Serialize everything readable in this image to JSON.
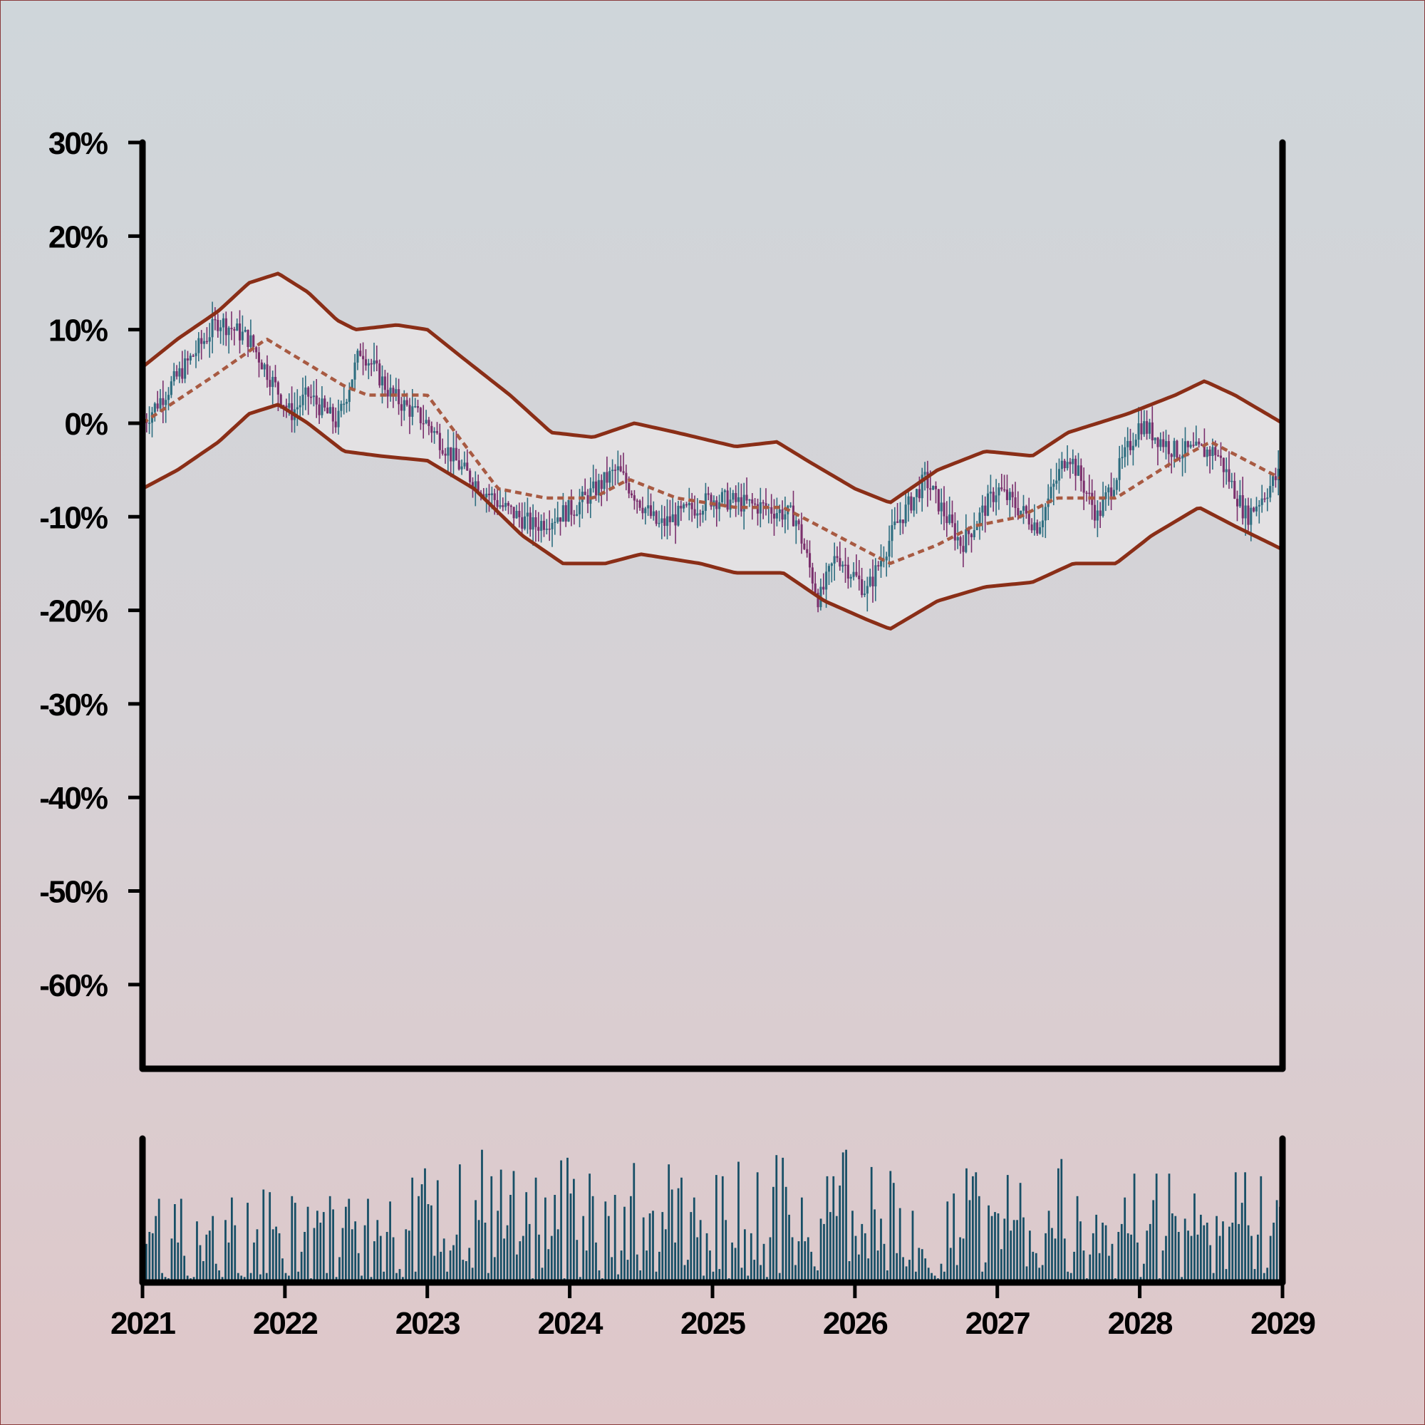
{
  "chart_data": [
    {
      "type": "candlestick",
      "title": "",
      "xlabel": "",
      "ylabel": "",
      "x_ticks": [
        "2021",
        "2022",
        "2023",
        "2024",
        "2025",
        "2026",
        "2027",
        "2028",
        "2029"
      ],
      "y_ticks": [
        "30%",
        "20%",
        "10%",
        "0%",
        "-10%",
        "-20%",
        "-30%",
        "-40%",
        "-50%",
        "-60%"
      ],
      "y_tick_values": [
        30,
        20,
        10,
        0,
        -10,
        -20,
        -30,
        -40,
        -50,
        -60
      ],
      "xlim": [
        "2021-01-01",
        "2029-01-01"
      ],
      "ylim": [
        -69,
        30
      ],
      "grid": false,
      "y_unit": "%",
      "series": [
        {
          "kind": "price-path",
          "note_points": [
            {
              "x": "2021-01-01",
              "y": 0
            },
            {
              "x": "2021-04-01",
              "y": 5
            },
            {
              "x": "2021-07-15",
              "y": 11
            },
            {
              "x": "2021-10-01",
              "y": 9
            },
            {
              "x": "2022-01-15",
              "y": 1
            },
            {
              "x": "2022-03-01",
              "y": 3
            },
            {
              "x": "2022-05-15",
              "y": 0
            },
            {
              "x": "2022-07-15",
              "y": 8
            },
            {
              "x": "2022-10-01",
              "y": 3
            },
            {
              "x": "2023-01-01",
              "y": 0
            },
            {
              "x": "2023-04-01",
              "y": -5
            },
            {
              "x": "2023-07-15",
              "y": -9
            },
            {
              "x": "2023-10-01",
              "y": -11
            },
            {
              "x": "2024-01-15",
              "y": -9
            },
            {
              "x": "2024-05-01",
              "y": -5
            },
            {
              "x": "2024-08-15",
              "y": -11
            },
            {
              "x": "2025-01-01",
              "y": -8
            },
            {
              "x": "2025-05-15",
              "y": -9
            },
            {
              "x": "2025-08-01",
              "y": -10
            },
            {
              "x": "2025-10-01",
              "y": -19
            },
            {
              "x": "2025-11-15",
              "y": -14
            },
            {
              "x": "2026-02-01",
              "y": -18
            },
            {
              "x": "2026-04-15",
              "y": -11
            },
            {
              "x": "2026-07-01",
              "y": -6
            },
            {
              "x": "2026-10-01",
              "y": -13
            },
            {
              "x": "2027-01-01",
              "y": -7
            },
            {
              "x": "2027-04-15",
              "y": -11
            },
            {
              "x": "2027-07-01",
              "y": -3
            },
            {
              "x": "2027-09-15",
              "y": -10
            },
            {
              "x": "2028-01-01",
              "y": 0
            },
            {
              "x": "2028-04-01",
              "y": -3
            },
            {
              "x": "2028-07-15",
              "y": -3
            },
            {
              "x": "2028-10-01",
              "y": -10
            },
            {
              "x": "2029-01-01",
              "y": -5
            }
          ]
        },
        {
          "kind": "moving-average",
          "style": "dashed",
          "points": [
            {
              "x": "2021-01-01",
              "y": 0
            },
            {
              "x": "2021-07-01",
              "y": 5
            },
            {
              "x": "2021-11-15",
              "y": 9
            },
            {
              "x": "2022-06-01",
              "y": 4
            },
            {
              "x": "2022-08-01",
              "y": 3
            },
            {
              "x": "2023-01-01",
              "y": 3
            },
            {
              "x": "2023-04-01",
              "y": -2
            },
            {
              "x": "2023-07-01",
              "y": -7
            },
            {
              "x": "2023-11-01",
              "y": -8
            },
            {
              "x": "2024-03-01",
              "y": -8
            },
            {
              "x": "2024-06-01",
              "y": -6
            },
            {
              "x": "2024-10-01",
              "y": -8
            },
            {
              "x": "2025-03-01",
              "y": -9
            },
            {
              "x": "2025-07-01",
              "y": -9
            },
            {
              "x": "2025-10-01",
              "y": -11
            },
            {
              "x": "2026-04-01",
              "y": -15
            },
            {
              "x": "2026-08-01",
              "y": -13
            },
            {
              "x": "2026-11-01",
              "y": -11
            },
            {
              "x": "2027-03-01",
              "y": -10
            },
            {
              "x": "2027-06-01",
              "y": -8
            },
            {
              "x": "2027-11-01",
              "y": -8
            },
            {
              "x": "2028-04-01",
              "y": -4
            },
            {
              "x": "2028-07-01",
              "y": -2
            },
            {
              "x": "2029-01-01",
              "y": -6
            }
          ]
        },
        {
          "kind": "upper-band",
          "points": [
            {
              "x": "2021-01-01",
              "y": 6
            },
            {
              "x": "2021-04-01",
              "y": 9
            },
            {
              "x": "2021-07-15",
              "y": 12
            },
            {
              "x": "2021-10-01",
              "y": 15
            },
            {
              "x": "2021-12-15",
              "y": 16
            },
            {
              "x": "2022-03-01",
              "y": 14
            },
            {
              "x": "2022-05-15",
              "y": 11
            },
            {
              "x": "2022-07-01",
              "y": 10
            },
            {
              "x": "2022-10-15",
              "y": 10.5
            },
            {
              "x": "2023-01-01",
              "y": 10
            },
            {
              "x": "2023-04-01",
              "y": 7
            },
            {
              "x": "2023-08-01",
              "y": 3
            },
            {
              "x": "2023-11-15",
              "y": -1
            },
            {
              "x": "2024-03-01",
              "y": -1.5
            },
            {
              "x": "2024-06-15",
              "y": 0
            },
            {
              "x": "2024-10-01",
              "y": -1
            },
            {
              "x": "2025-03-01",
              "y": -2.5
            },
            {
              "x": "2025-06-15",
              "y": -2
            },
            {
              "x": "2025-09-01",
              "y": -4
            },
            {
              "x": "2026-01-01",
              "y": -7
            },
            {
              "x": "2026-04-01",
              "y": -8.5
            },
            {
              "x": "2026-08-01",
              "y": -5
            },
            {
              "x": "2026-12-01",
              "y": -3
            },
            {
              "x": "2027-04-01",
              "y": -3.5
            },
            {
              "x": "2027-07-01",
              "y": -1
            },
            {
              "x": "2027-12-01",
              "y": 1
            },
            {
              "x": "2028-04-01",
              "y": 3
            },
            {
              "x": "2028-06-15",
              "y": 4.5
            },
            {
              "x": "2028-09-01",
              "y": 3
            },
            {
              "x": "2029-01-01",
              "y": 0
            }
          ]
        },
        {
          "kind": "lower-band",
          "points": [
            {
              "x": "2021-01-01",
              "y": -7
            },
            {
              "x": "2021-04-01",
              "y": -5
            },
            {
              "x": "2021-07-15",
              "y": -2
            },
            {
              "x": "2021-10-01",
              "y": 1
            },
            {
              "x": "2021-12-15",
              "y": 2
            },
            {
              "x": "2022-03-01",
              "y": 0
            },
            {
              "x": "2022-06-01",
              "y": -3
            },
            {
              "x": "2022-09-01",
              "y": -3.5
            },
            {
              "x": "2023-01-01",
              "y": -4
            },
            {
              "x": "2023-05-01",
              "y": -7
            },
            {
              "x": "2023-09-01",
              "y": -12
            },
            {
              "x": "2023-12-15",
              "y": -15
            },
            {
              "x": "2024-04-01",
              "y": -15
            },
            {
              "x": "2024-07-01",
              "y": -14
            },
            {
              "x": "2024-12-01",
              "y": -15
            },
            {
              "x": "2025-03-01",
              "y": -16
            },
            {
              "x": "2025-07-01",
              "y": -16
            },
            {
              "x": "2025-10-15",
              "y": -19
            },
            {
              "x": "2026-02-01",
              "y": -21
            },
            {
              "x": "2026-04-01",
              "y": -22
            },
            {
              "x": "2026-08-01",
              "y": -19
            },
            {
              "x": "2026-12-01",
              "y": -17.5
            },
            {
              "x": "2027-04-01",
              "y": -17
            },
            {
              "x": "2027-07-15",
              "y": -15
            },
            {
              "x": "2027-11-01",
              "y": -15
            },
            {
              "x": "2028-02-01",
              "y": -12
            },
            {
              "x": "2028-06-01",
              "y": -9
            },
            {
              "x": "2028-09-01",
              "y": -11
            },
            {
              "x": "2029-01-01",
              "y": -13.5
            }
          ]
        }
      ]
    },
    {
      "type": "bar",
      "title": "",
      "xlabel": "",
      "ylabel": "",
      "note": "volume subplot",
      "x_ticks": [
        "2021",
        "2022",
        "2023",
        "2024",
        "2025",
        "2026",
        "2027",
        "2028",
        "2029"
      ],
      "values_source": "weekly bars, heights relative 0-1",
      "values": [
        0.27,
        0.36,
        0.35,
        0.48,
        0.61,
        0.05,
        0.02,
        0.01,
        0.31,
        0.57,
        0.28,
        0.61,
        0.18,
        0.03,
        0.01,
        0.02,
        0.44,
        0.26,
        0.14,
        0.34,
        0.37,
        0.48,
        0.12,
        0.07,
        0.02,
        0.45,
        0.28,
        0.62,
        0.41,
        0.05,
        0.03,
        0.02,
        0.58,
        0.05,
        0.28,
        0.38,
        0.04,
        0.68,
        0.05,
        0.66,
        0.38,
        0.4,
        0.35,
        0.16,
        0.05,
        0.03,
        0.63,
        0.58,
        0.06,
        0.21,
        0.36,
        0.55,
        0.01,
        0.39,
        0.52,
        0.43,
        0.51,
        0.05,
        0.63,
        0.53,
        0.02,
        0.17,
        0.39,
        0.55,
        0.61,
        0.38,
        0.44,
        0.2,
        0.03,
        0.41,
        0.61,
        0.02,
        0.29,
        0.45,
        0.33,
        0.06,
        0.36,
        0.59,
        0.32,
        0.05,
        0.08,
        0.02,
        0.38,
        0.37,
        0.77,
        0.06,
        0.63,
        0.72,
        0.84,
        0.57,
        0.56,
        0.18,
        0.75,
        0.21,
        0.31,
        0.06,
        0.22,
        0.26,
        0.34,
        0.87,
        0.15,
        0.14,
        0.24,
        0.09,
        0.6,
        0.45,
        0.98,
        0.43,
        0.05,
        0.78,
        0.17,
        0.52,
        0.83,
        0.31,
        0.41,
        0.64,
        0.82,
        0.19,
        0.29,
        0.33,
        0.66,
        0.42,
        0.01,
        0.77,
        0.34,
        0.09,
        0.62,
        0.23,
        0.33,
        0.64,
        0.38,
        0.9,
        0.01,
        0.92,
        0.65,
        0.76,
        0.3,
        0.02,
        0.48,
        0.22,
        0.8,
        0.63,
        0.28,
        0.07,
        0.01,
        0.59,
        0.48,
        0.17,
        0.64,
        0.04,
        0.22,
        0.55,
        0.15,
        0.63,
        0.88,
        0.19,
        0.07,
        0.47,
        0.22,
        0.5,
        0.52,
        0.06,
        0.21,
        0.51,
        0.38,
        0.87,
        0.68,
        0.28,
        0.69,
        0.77,
        0.11,
        0.15,
        0.51,
        0.62,
        0.32,
        0.45,
        0.03,
        0.35,
        0.22,
        0.06,
        0.79,
        0.08,
        0.78,
        0.45,
        0.01,
        0.28,
        0.24,
        0.89,
        0.09,
        0.38,
        0.03,
        0.35,
        0.15,
        0.81,
        0.11,
        0.27,
        0.02,
        0.32,
        0.7,
        0.94,
        0.05,
        0.92,
        0.7,
        0.49,
        0.32,
        0.11,
        0.29,
        0.62,
        0.29,
        0.32,
        0.21,
        0.1,
        0.07,
        0.46,
        0.42,
        0.78,
        0.51,
        0.78,
        0.48,
        0.71,
        0.96,
        0.98,
        0.14,
        0.52,
        0.33,
        0.19,
        0.42,
        0.35,
        0.16,
        0.85,
        0.53,
        0.22,
        0.46,
        0.27,
        0.07,
        0.82,
        0.73,
        0.2,
        0.54,
        0.17,
        0.1,
        0.15,
        0.52,
        0.06,
        0.24,
        0.23,
        0.16,
        0.09,
        0.05,
        0.03,
        0.01,
        0.12,
        0.06,
        0.59,
        0.24,
        0.65,
        0.11,
        0.32,
        0.31,
        0.84,
        0.6,
        0.78,
        0.81,
        0.63,
        0.06,
        0.13,
        0.56,
        0.48,
        0.51,
        0.5,
        0.23,
        0.46,
        0.79,
        0.37,
        0.45,
        0.45,
        0.73,
        0.47,
        0.1,
        0.37,
        0.21,
        0.2,
        0.09,
        0.11,
        0.35,
        0.52,
        0.39,
        0.31,
        0.84,
        0.91,
        0.31,
        0.06,
        0.05,
        0.21,
        0.63,
        0.44,
        0.22,
        0.01,
        0.19,
        0.35,
        0.49,
        0.2,
        0.43,
        0.41,
        0.18,
        0.27,
        0.01,
        0.36,
        0.42,
        0.62,
        0.35,
        0.34,
        0.8,
        0.28,
        0.02,
        0.12,
        0.37,
        0.42,
        0.6,
        0.8,
        0.01,
        0.22,
        0.33,
        0.8,
        0.5,
        0.48,
        0.36,
        0.02,
        0.46,
        0.37,
        0.33,
        0.65,
        0.34,
        0.49,
        0.41,
        0.43,
        0.26,
        0.05,
        0.48,
        0.33,
        0.44,
        0.08,
        0.4,
        0.43,
        0.81,
        0.42,
        0.58,
        0.81,
        0.41,
        0.33,
        0.08,
        0.34,
        0.78,
        0.05,
        0.09,
        0.33,
        0.43,
        0.6,
        0.55,
        0.39
      ]
    }
  ],
  "colors": {
    "up_candle": "#2e6e80",
    "down_candle": "#7a2f6c",
    "band_line": "#8a2e17",
    "ma_line": "#a85a42",
    "band_fill": "#e4e2e4",
    "volume_bar": "#174f66",
    "axis": "#000000"
  }
}
